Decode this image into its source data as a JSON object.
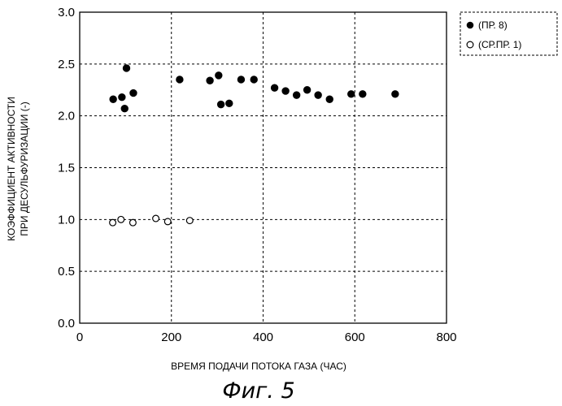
{
  "chart_data": {
    "type": "scatter",
    "xlabel": "ВРЕМЯ ПОДАЧИ ПОТОКА ГАЗА (ЧАС)",
    "ylabel_lines": [
      "КОЭФФИЦИЕНТ АКТИВНОСТИ",
      "ПРИ ДЕСУЛЬФУРИЗАЦИИ (-)"
    ],
    "xlim": [
      0,
      800
    ],
    "ylim": [
      0.0,
      3.0
    ],
    "xticks": [
      "0",
      "200",
      "400",
      "600",
      "800"
    ],
    "yticks": [
      "0.0",
      "0.5",
      "1.0",
      "1.5",
      "2.0",
      "2.5",
      "3.0"
    ],
    "grid": true,
    "legend_position": "top-right, outside plot",
    "series": [
      {
        "name": "(ПР. 8)",
        "marker": "filled-circle",
        "points": [
          [
            73,
            2.16
          ],
          [
            92,
            2.18
          ],
          [
            98,
            2.07
          ],
          [
            102,
            2.46
          ],
          [
            117,
            2.22
          ],
          [
            218,
            2.35
          ],
          [
            284,
            2.34
          ],
          [
            303,
            2.39
          ],
          [
            308,
            2.11
          ],
          [
            326,
            2.12
          ],
          [
            352,
            2.35
          ],
          [
            380,
            2.35
          ],
          [
            425,
            2.27
          ],
          [
            449,
            2.24
          ],
          [
            473,
            2.2
          ],
          [
            496,
            2.25
          ],
          [
            520,
            2.2
          ],
          [
            545,
            2.16
          ],
          [
            592,
            2.21
          ],
          [
            617,
            2.21
          ],
          [
            688,
            2.21
          ]
        ]
      },
      {
        "name": "(СР.ПР. 1)",
        "marker": "open-circle",
        "points": [
          [
            72,
            0.97
          ],
          [
            90,
            1.0
          ],
          [
            116,
            0.97
          ],
          [
            166,
            1.01
          ],
          [
            192,
            0.98
          ],
          [
            240,
            0.99
          ]
        ]
      }
    ]
  },
  "caption": "Фиг. 5"
}
